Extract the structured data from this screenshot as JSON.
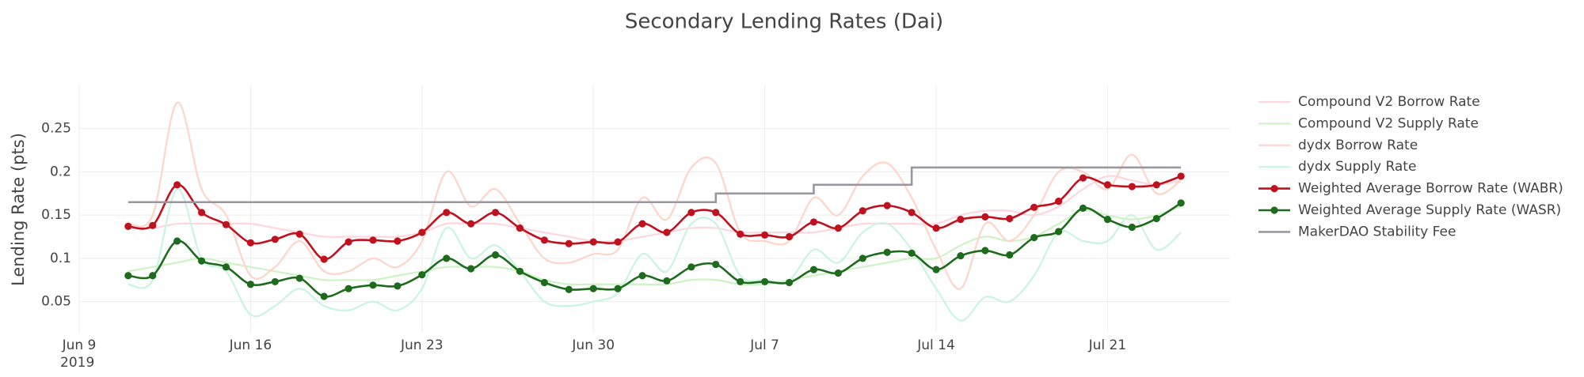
{
  "chart_data": {
    "type": "line",
    "title": "Secondary Lending Rates (Dai)",
    "y_label": "Lending Rate (pts)",
    "x": [
      "2019-06-11",
      "2019-06-12",
      "2019-06-13",
      "2019-06-14",
      "2019-06-15",
      "2019-06-16",
      "2019-06-17",
      "2019-06-18",
      "2019-06-19",
      "2019-06-20",
      "2019-06-21",
      "2019-06-22",
      "2019-06-23",
      "2019-06-24",
      "2019-06-25",
      "2019-06-26",
      "2019-06-27",
      "2019-06-28",
      "2019-06-29",
      "2019-06-30",
      "2019-07-01",
      "2019-07-02",
      "2019-07-03",
      "2019-07-04",
      "2019-07-05",
      "2019-07-06",
      "2019-07-07",
      "2019-07-08",
      "2019-07-09",
      "2019-07-10",
      "2019-07-11",
      "2019-07-12",
      "2019-07-13",
      "2019-07-14",
      "2019-07-15",
      "2019-07-16",
      "2019-07-17",
      "2019-07-18",
      "2019-07-19",
      "2019-07-20",
      "2019-07-21",
      "2019-07-22",
      "2019-07-23",
      "2019-07-24"
    ],
    "xlim": [
      "2019-06-09",
      "2019-07-26"
    ],
    "xticks": [
      {
        "value": "2019-06-09",
        "label": "Jun 9",
        "year": "2019"
      },
      {
        "value": "2019-06-16",
        "label": "Jun 16"
      },
      {
        "value": "2019-06-23",
        "label": "Jun 23"
      },
      {
        "value": "2019-06-30",
        "label": "Jun 30"
      },
      {
        "value": "2019-07-07",
        "label": "Jul 7"
      },
      {
        "value": "2019-07-14",
        "label": "Jul 14"
      },
      {
        "value": "2019-07-21",
        "label": "Jul 21"
      }
    ],
    "ylim": [
      0.014,
      0.3
    ],
    "yticks": [
      0.05,
      0.1,
      0.15,
      0.2,
      0.25
    ],
    "grid": true,
    "legend": "right",
    "series": [
      {
        "name": "Compound V2 Borrow Rate",
        "color": "#ffd6de",
        "smooth": true,
        "values": [
          0.135,
          0.135,
          0.14,
          0.14,
          0.14,
          0.14,
          0.135,
          0.13,
          0.125,
          0.125,
          0.125,
          0.125,
          0.13,
          0.14,
          0.14,
          0.14,
          0.135,
          0.13,
          0.125,
          0.12,
          0.12,
          0.125,
          0.13,
          0.135,
          0.135,
          0.13,
          0.13,
          0.13,
          0.13,
          0.135,
          0.14,
          0.14,
          0.14,
          0.14,
          0.15,
          0.155,
          0.155,
          0.15,
          0.16,
          0.18,
          0.195,
          0.19,
          0.185,
          0.19
        ]
      },
      {
        "name": "Compound V2 Supply Rate",
        "color": "#cdf3c4",
        "smooth": true,
        "values": [
          0.085,
          0.09,
          0.095,
          0.1,
          0.095,
          0.09,
          0.085,
          0.08,
          0.075,
          0.075,
          0.075,
          0.08,
          0.085,
          0.09,
          0.09,
          0.09,
          0.085,
          0.075,
          0.07,
          0.07,
          0.07,
          0.07,
          0.07,
          0.075,
          0.075,
          0.07,
          0.07,
          0.075,
          0.08,
          0.085,
          0.09,
          0.095,
          0.1,
          0.1,
          0.115,
          0.125,
          0.12,
          0.125,
          0.14,
          0.155,
          0.15,
          0.145,
          0.15,
          0.16
        ]
      },
      {
        "name": "dydx Borrow Rate",
        "color": "#ffd4c9",
        "smooth": true,
        "values": [
          0.14,
          0.15,
          0.28,
          0.18,
          0.15,
          0.08,
          0.09,
          0.12,
          0.085,
          0.085,
          0.1,
          0.09,
          0.12,
          0.2,
          0.16,
          0.18,
          0.14,
          0.1,
          0.095,
          0.105,
          0.11,
          0.17,
          0.145,
          0.205,
          0.21,
          0.13,
          0.12,
          0.12,
          0.17,
          0.15,
          0.195,
          0.21,
          0.17,
          0.11,
          0.065,
          0.14,
          0.12,
          0.15,
          0.2,
          0.2,
          0.18,
          0.22,
          0.175,
          0.19
        ]
      },
      {
        "name": "dydx Supply Rate",
        "color": "#c9f4e2",
        "smooth": true,
        "values": [
          0.07,
          0.075,
          0.18,
          0.1,
          0.085,
          0.035,
          0.045,
          0.065,
          0.045,
          0.04,
          0.05,
          0.04,
          0.065,
          0.135,
          0.1,
          0.115,
          0.085,
          0.05,
          0.045,
          0.05,
          0.06,
          0.105,
          0.085,
          0.14,
          0.14,
          0.08,
          0.075,
          0.075,
          0.11,
          0.095,
          0.13,
          0.14,
          0.11,
          0.065,
          0.028,
          0.055,
          0.05,
          0.08,
          0.13,
          0.12,
          0.12,
          0.15,
          0.11,
          0.13
        ]
      },
      {
        "name": "Weighted Average Borrow Rate (WABR)",
        "color": "#c0111f",
        "smooth": true,
        "markers": true,
        "values": [
          0.137,
          0.138,
          0.185,
          0.153,
          0.139,
          0.118,
          0.122,
          0.128,
          0.099,
          0.119,
          0.121,
          0.12,
          0.13,
          0.153,
          0.14,
          0.153,
          0.135,
          0.121,
          0.117,
          0.119,
          0.119,
          0.14,
          0.13,
          0.153,
          0.153,
          0.128,
          0.127,
          0.125,
          0.142,
          0.135,
          0.155,
          0.161,
          0.153,
          0.135,
          0.145,
          0.148,
          0.146,
          0.159,
          0.166,
          0.193,
          0.185,
          0.183,
          0.185,
          0.195
        ]
      },
      {
        "name": "Weighted Average Supply Rate (WASR)",
        "color": "#1e6b1e",
        "smooth": true,
        "markers": true,
        "values": [
          0.08,
          0.08,
          0.12,
          0.097,
          0.09,
          0.07,
          0.073,
          0.077,
          0.056,
          0.065,
          0.069,
          0.068,
          0.081,
          0.1,
          0.088,
          0.104,
          0.085,
          0.072,
          0.064,
          0.065,
          0.065,
          0.08,
          0.074,
          0.09,
          0.093,
          0.073,
          0.073,
          0.072,
          0.087,
          0.083,
          0.1,
          0.107,
          0.106,
          0.087,
          0.103,
          0.109,
          0.104,
          0.124,
          0.131,
          0.158,
          0.145,
          0.136,
          0.146,
          0.164
        ]
      },
      {
        "name": "MakerDAO Stability Fee",
        "color": "#9b97a0",
        "shape": "hv",
        "values": [
          0.165,
          0.165,
          0.165,
          0.165,
          0.165,
          0.165,
          0.165,
          0.165,
          0.165,
          0.165,
          0.165,
          0.165,
          0.165,
          0.165,
          0.165,
          0.165,
          0.165,
          0.165,
          0.165,
          0.165,
          0.165,
          0.165,
          0.165,
          0.165,
          0.175,
          0.175,
          0.175,
          0.175,
          0.185,
          0.185,
          0.185,
          0.185,
          0.205,
          0.205,
          0.205,
          0.205,
          0.205,
          0.205,
          0.205,
          0.205,
          0.205,
          0.205,
          0.205,
          0.205
        ]
      }
    ]
  }
}
